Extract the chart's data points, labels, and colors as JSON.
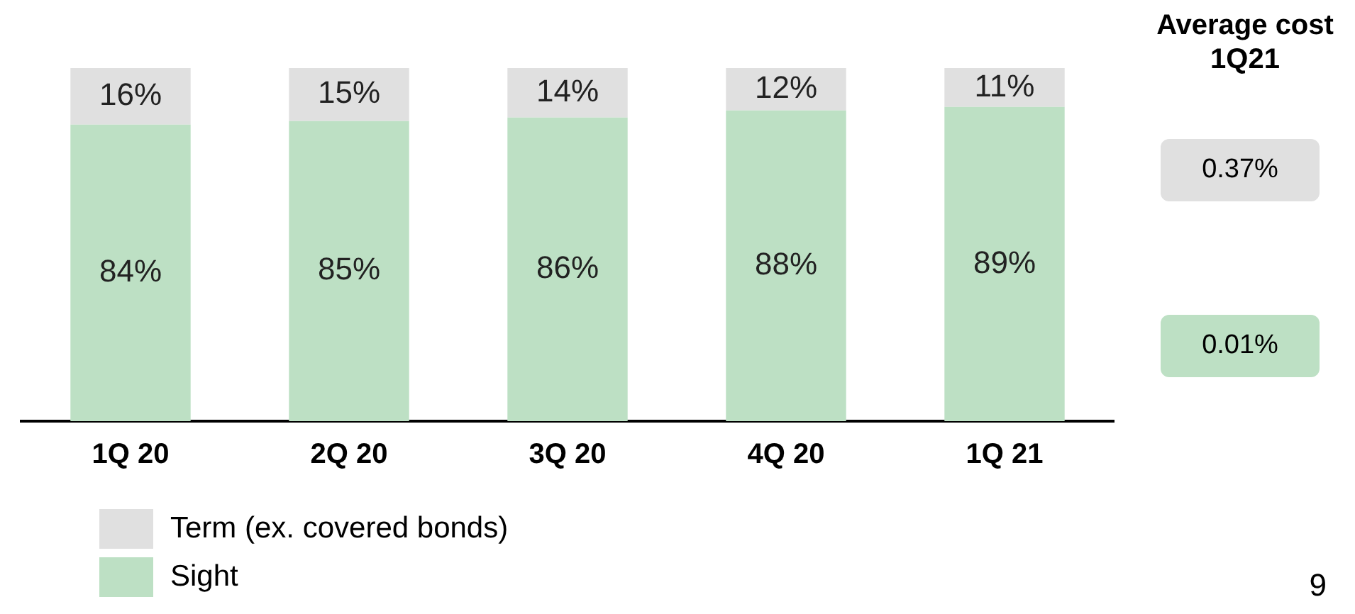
{
  "chart_data": {
    "type": "bar",
    "stacked": true,
    "categories": [
      "1Q 20",
      "2Q 20",
      "3Q 20",
      "4Q 20",
      "1Q 21"
    ],
    "series": [
      {
        "name": "Sight",
        "color": "#bde0c4",
        "values": [
          84,
          85,
          86,
          88,
          89
        ],
        "value_labels": [
          "84%",
          "85%",
          "86%",
          "88%",
          "89%"
        ]
      },
      {
        "name": "Term (ex. covered bonds)",
        "color": "#e0e0e0",
        "values": [
          16,
          15,
          14,
          12,
          11
        ],
        "value_labels": [
          "16%",
          "15%",
          "14%",
          "12%",
          "11%"
        ]
      }
    ],
    "ylim": [
      0,
      100
    ],
    "tick_labels": "x",
    "grid": false,
    "legend": "bottom left",
    "annotations": [
      "Average cost 1Q21",
      "0.37%",
      "0.01%",
      "9"
    ]
  }
}
